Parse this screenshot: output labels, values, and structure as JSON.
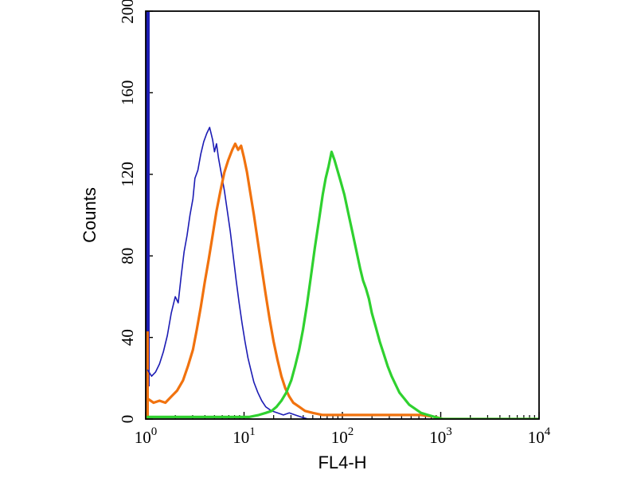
{
  "figure": {
    "background": "#ffffff",
    "plot_background": "#ffffff",
    "border_color": "#000000"
  },
  "axes": {
    "x": {
      "label": "FL4-H",
      "scale": "log10",
      "min_exponent": 0,
      "max_exponent": 4,
      "tick_base": "10",
      "tick_exponents": [
        "0",
        "1",
        "2",
        "3",
        "4"
      ]
    },
    "y": {
      "label": "Counts",
      "min": 0,
      "max": 200,
      "major_ticks": [
        "0",
        "40",
        "80",
        "120",
        "160",
        "200"
      ],
      "major_tick_values": [
        0,
        40,
        80,
        120,
        160,
        200
      ],
      "minor_tick_step": 20
    }
  },
  "chart_data": {
    "type": "line",
    "title": "",
    "xlabel": "FL4-H",
    "ylabel": "Counts",
    "x_scale": "log10",
    "xlim": [
      1,
      10000
    ],
    "ylim": [
      0,
      200
    ],
    "grid": false,
    "legend": "none",
    "series": [
      {
        "name": "blue-histogram",
        "color": "#1c1cb4",
        "width": 1.6,
        "points_log10x_count": [
          [
            0.02,
            24
          ],
          [
            0.06,
            21
          ],
          [
            0.1,
            23
          ],
          [
            0.14,
            27
          ],
          [
            0.18,
            33
          ],
          [
            0.22,
            41
          ],
          [
            0.26,
            52
          ],
          [
            0.3,
            60
          ],
          [
            0.33,
            57
          ],
          [
            0.36,
            70
          ],
          [
            0.39,
            82
          ],
          [
            0.42,
            90
          ],
          [
            0.45,
            100
          ],
          [
            0.48,
            108
          ],
          [
            0.5,
            118
          ],
          [
            0.53,
            122
          ],
          [
            0.56,
            130
          ],
          [
            0.59,
            136
          ],
          [
            0.62,
            140
          ],
          [
            0.65,
            143
          ],
          [
            0.68,
            137
          ],
          [
            0.7,
            131
          ],
          [
            0.72,
            135
          ],
          [
            0.74,
            128
          ],
          [
            0.77,
            120
          ],
          [
            0.8,
            112
          ],
          [
            0.83,
            102
          ],
          [
            0.86,
            92
          ],
          [
            0.89,
            80
          ],
          [
            0.92,
            68
          ],
          [
            0.95,
            57
          ],
          [
            0.98,
            47
          ],
          [
            1.01,
            38
          ],
          [
            1.04,
            30
          ],
          [
            1.07,
            24
          ],
          [
            1.1,
            18
          ],
          [
            1.14,
            13
          ],
          [
            1.18,
            9
          ],
          [
            1.22,
            6
          ],
          [
            1.28,
            4
          ],
          [
            1.34,
            3
          ],
          [
            1.4,
            2
          ],
          [
            1.46,
            3
          ],
          [
            1.52,
            2
          ],
          [
            1.58,
            1
          ],
          [
            1.65,
            0
          ],
          [
            2.0,
            0
          ],
          [
            3.0,
            0
          ],
          [
            4.0,
            0
          ]
        ]
      },
      {
        "name": "orange-histogram",
        "color": "#f1720e",
        "width": 3.2,
        "points_log10x_count": [
          [
            0.02,
            10
          ],
          [
            0.08,
            8
          ],
          [
            0.14,
            9
          ],
          [
            0.2,
            8
          ],
          [
            0.26,
            11
          ],
          [
            0.32,
            14
          ],
          [
            0.38,
            19
          ],
          [
            0.43,
            26
          ],
          [
            0.48,
            34
          ],
          [
            0.52,
            44
          ],
          [
            0.56,
            55
          ],
          [
            0.6,
            67
          ],
          [
            0.64,
            78
          ],
          [
            0.68,
            90
          ],
          [
            0.72,
            102
          ],
          [
            0.76,
            112
          ],
          [
            0.8,
            121
          ],
          [
            0.84,
            127
          ],
          [
            0.88,
            132
          ],
          [
            0.91,
            135
          ],
          [
            0.94,
            132
          ],
          [
            0.97,
            134
          ],
          [
            1.0,
            128
          ],
          [
            1.03,
            121
          ],
          [
            1.06,
            112
          ],
          [
            1.1,
            100
          ],
          [
            1.14,
            87
          ],
          [
            1.18,
            74
          ],
          [
            1.22,
            61
          ],
          [
            1.26,
            49
          ],
          [
            1.3,
            38
          ],
          [
            1.34,
            29
          ],
          [
            1.38,
            21
          ],
          [
            1.42,
            15
          ],
          [
            1.46,
            11
          ],
          [
            1.5,
            8
          ],
          [
            1.56,
            6
          ],
          [
            1.62,
            4
          ],
          [
            1.7,
            3
          ],
          [
            1.8,
            2
          ],
          [
            1.95,
            2
          ],
          [
            2.1,
            2
          ],
          [
            2.3,
            2
          ],
          [
            2.55,
            2
          ],
          [
            2.8,
            2
          ],
          [
            2.95,
            1
          ],
          [
            3.02,
            0
          ],
          [
            3.5,
            0
          ],
          [
            4.0,
            0
          ]
        ]
      },
      {
        "name": "green-histogram",
        "color": "#2fd12f",
        "width": 3.2,
        "points_log10x_count": [
          [
            0.02,
            1
          ],
          [
            0.3,
            1
          ],
          [
            0.6,
            1
          ],
          [
            0.9,
            1
          ],
          [
            1.05,
            1
          ],
          [
            1.15,
            2
          ],
          [
            1.22,
            3
          ],
          [
            1.28,
            4
          ],
          [
            1.33,
            6
          ],
          [
            1.38,
            9
          ],
          [
            1.43,
            13
          ],
          [
            1.48,
            19
          ],
          [
            1.52,
            26
          ],
          [
            1.56,
            34
          ],
          [
            1.6,
            44
          ],
          [
            1.64,
            56
          ],
          [
            1.68,
            70
          ],
          [
            1.72,
            84
          ],
          [
            1.76,
            97
          ],
          [
            1.8,
            110
          ],
          [
            1.83,
            118
          ],
          [
            1.86,
            124
          ],
          [
            1.89,
            131
          ],
          [
            1.92,
            127
          ],
          [
            1.95,
            122
          ],
          [
            1.98,
            117
          ],
          [
            2.02,
            110
          ],
          [
            2.06,
            101
          ],
          [
            2.1,
            92
          ],
          [
            2.14,
            83
          ],
          [
            2.18,
            74
          ],
          [
            2.21,
            68
          ],
          [
            2.24,
            64
          ],
          [
            2.27,
            59
          ],
          [
            2.3,
            52
          ],
          [
            2.34,
            45
          ],
          [
            2.38,
            38
          ],
          [
            2.42,
            32
          ],
          [
            2.46,
            26
          ],
          [
            2.5,
            21
          ],
          [
            2.54,
            17
          ],
          [
            2.58,
            13
          ],
          [
            2.63,
            10
          ],
          [
            2.68,
            7
          ],
          [
            2.74,
            5
          ],
          [
            2.8,
            3
          ],
          [
            2.87,
            2
          ],
          [
            2.94,
            1
          ],
          [
            3.02,
            0
          ],
          [
            3.5,
            0
          ],
          [
            4.0,
            0
          ]
        ]
      }
    ],
    "edge_spikes": [
      {
        "series": "blue-histogram",
        "color": "#1c1cb4",
        "x_log10": 0.012,
        "count_from": 16,
        "count_to": 200,
        "width": 7
      },
      {
        "series": "orange-histogram",
        "color": "#f1720e",
        "x_log10": 0.012,
        "count_from": 0,
        "count_to": 43,
        "width": 5
      }
    ]
  }
}
